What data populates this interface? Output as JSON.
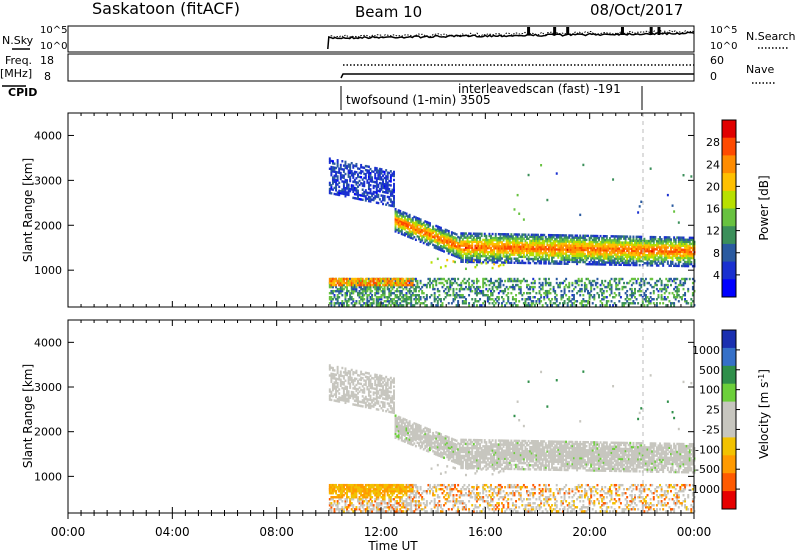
{
  "header": {
    "station": "Saskatoon (fitACF)",
    "beam": "Beam 10",
    "date": "08/Oct/2017"
  },
  "top_panels": {
    "nsky_label": "N.Sky",
    "nsearch_label": "N.Search",
    "noise_ticks_left": [
      "10^5",
      "10^0"
    ],
    "noise_ticks_right": [
      "10^5",
      "10^0"
    ],
    "freq_label": "Freq.",
    "freq_unit": "[MHz]",
    "freq_ticks": [
      "18",
      "8"
    ],
    "nave_ticks": [
      "60",
      "0"
    ],
    "nave_label": "Nave",
    "cpid_label": "CPID",
    "cpid_programs": [
      "twofsound (1-min) 3505",
      "interleavedscan (fast) -191"
    ]
  },
  "colorbars": {
    "power": {
      "label": "Power [dB]",
      "ticks": [
        "28",
        "24",
        "20",
        "16",
        "12",
        "8",
        "4"
      ],
      "colors": [
        "#e00000",
        "#ff4a00",
        "#ff8c00",
        "#ffc000",
        "#b8e000",
        "#68c240",
        "#3b8f5a",
        "#2a5aa0",
        "#1a30d0",
        "#0000ff"
      ]
    },
    "velocity": {
      "label": "Velocity [m s",
      "label_sup": "-1",
      "label_close": "]",
      "ticks": [
        "1000",
        "500",
        "100",
        "25",
        "-25",
        "-100",
        "-500",
        "-1000"
      ],
      "colors": [
        "#1a2fb0",
        "#3570c8",
        "#2f8f4a",
        "#6ccf3a",
        "#c7c6bf",
        "#c7c6bf",
        "#f2c200",
        "#ff9a00",
        "#ff5a00",
        "#e60000"
      ]
    }
  },
  "chart_data": [
    {
      "type": "heatmap",
      "title": "Power",
      "xlabel": "Time UT",
      "ylabel": "Slant Range [km]",
      "x_ticks": [
        "00:00",
        "04:00",
        "08:00",
        "12:00",
        "16:00",
        "20:00",
        "00:00"
      ],
      "x_range_hours": [
        0,
        24
      ],
      "y_ticks": [
        "1000",
        "2000",
        "3000",
        "4000"
      ],
      "y_range_km": [
        180,
        4500
      ],
      "colorbar_range_db": [
        0,
        32
      ],
      "data_start_hour": 10,
      "scatter_bands": [
        {
          "name": "near-range",
          "t_start": 10,
          "t_end": 24,
          "r_low": 200,
          "r_high": 800,
          "power_db": 10
        },
        {
          "name": "early-e-region",
          "t_start": 10,
          "t_end": 13.2,
          "r_low": 650,
          "r_high": 800,
          "power_db": 22
        },
        {
          "name": "far-range-early",
          "t_start": 10,
          "t_end": 12.5,
          "r_low": 2700,
          "r_high": 3500,
          "power_db": 5
        },
        {
          "name": "main-f-region-trace",
          "t_start": 12.5,
          "t_end": 24,
          "r_center_start": 2100,
          "r_center_mid": 1500,
          "r_center_end": 1400,
          "power_db": 24
        }
      ]
    },
    {
      "type": "heatmap",
      "title": "Velocity",
      "xlabel": "Time UT",
      "ylabel": "Slant Range [km]",
      "x_ticks": [
        "00:00",
        "04:00",
        "08:00",
        "12:00",
        "16:00",
        "20:00",
        "00:00"
      ],
      "x_range_hours": [
        0,
        24
      ],
      "y_ticks": [
        "1000",
        "2000",
        "3000",
        "4000"
      ],
      "y_range_km": [
        180,
        4500
      ],
      "colorbar_range_ms": [
        -1000,
        1000
      ],
      "data_start_hour": 10,
      "dominant_velocity": "ground scatter (-25 to 25 m/s)"
    }
  ]
}
